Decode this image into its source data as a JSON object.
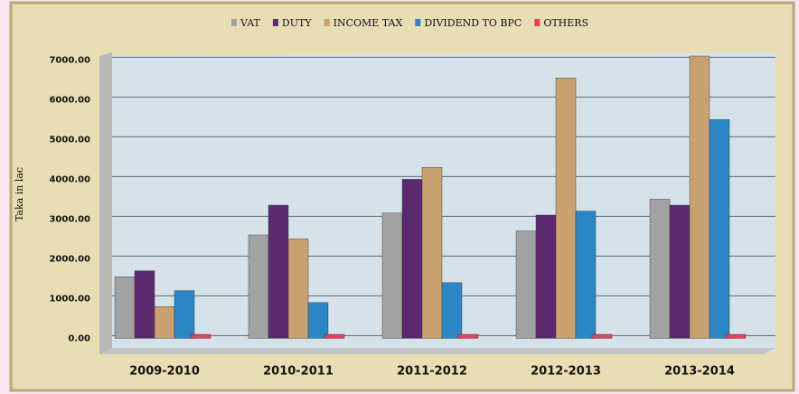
{
  "chart_data": {
    "type": "bar",
    "y_label": "Taka in lac",
    "categories": [
      "2009-2010",
      "2010-2011",
      "2011-2012",
      "2012-2013",
      "2013-2014"
    ],
    "series": [
      {
        "name": "VAT",
        "color": "#a2a2a2",
        "values": [
          1550,
          2600,
          3150,
          2700,
          3500
        ]
      },
      {
        "name": "DUTY",
        "color": "#5b2a6e",
        "values": [
          1700,
          3350,
          4000,
          3100,
          3350
        ]
      },
      {
        "name": "INCOME TAX",
        "color": "#c9a070",
        "values": [
          800,
          2500,
          4300,
          6550,
          7100
        ]
      },
      {
        "name": "DIVIDEND TO BPC",
        "color": "#2a86c4",
        "values": [
          1200,
          900,
          1400,
          3200,
          5500
        ]
      },
      {
        "name": "OTHERS",
        "color": "#e8405a",
        "values": [
          100,
          100,
          100,
          100,
          100
        ]
      }
    ],
    "ylim": [
      -400,
      7200
    ],
    "yticks": [
      {
        "value": 0,
        "label": "0.00"
      },
      {
        "value": 1000,
        "label": "1000.00"
      },
      {
        "value": 2000,
        "label": "2000.00"
      },
      {
        "value": 3000,
        "label": "3000.00"
      },
      {
        "value": 4000,
        "label": "4000.00"
      },
      {
        "value": 5000,
        "label": "5000.00"
      },
      {
        "value": 6000,
        "label": "6000.00"
      },
      {
        "value": 7000,
        "label": "7000.00"
      }
    ],
    "grid": true
  }
}
